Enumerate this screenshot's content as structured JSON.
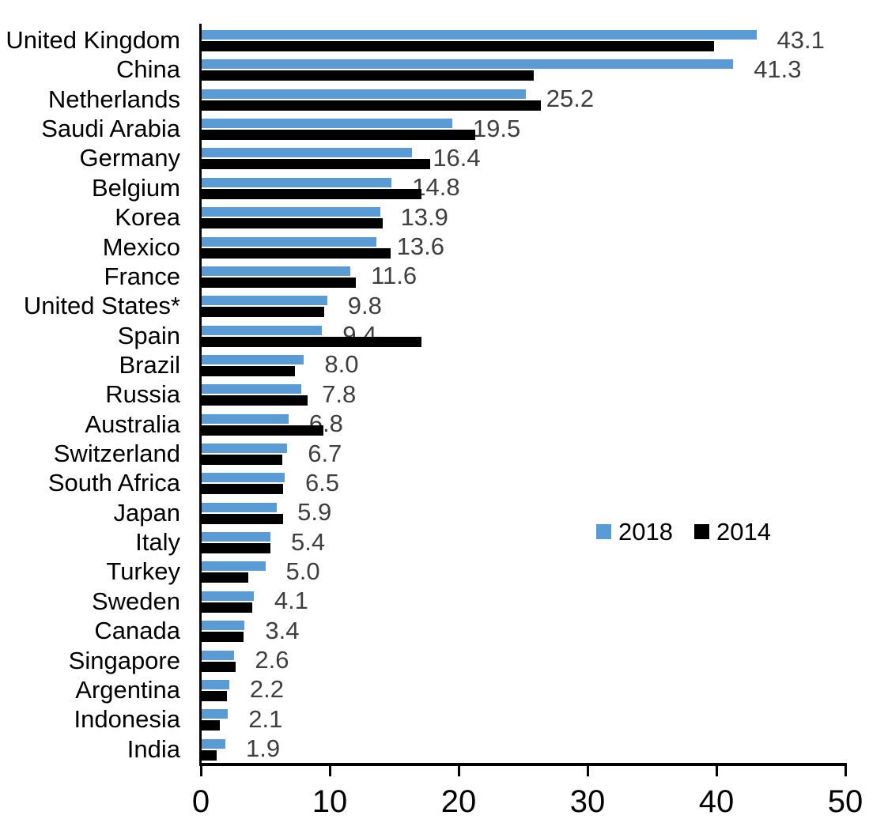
{
  "chart_data": {
    "type": "bar",
    "orientation": "horizontal",
    "title": "",
    "xlabel": "",
    "ylabel": "",
    "xlim": [
      0,
      50
    ],
    "xticks": [
      "0",
      "10",
      "20",
      "30",
      "40",
      "50"
    ],
    "grid": false,
    "legend_position": "middle-right",
    "categories": [
      "United Kingdom",
      "China",
      "Netherlands",
      "Saudi Arabia",
      "Germany",
      "Belgium",
      "Korea",
      "Mexico",
      "France",
      "United States*",
      "Spain",
      "Brazil",
      "Russia",
      "Australia",
      "Switzerland",
      "South Africa",
      "Japan",
      "Italy",
      "Turkey",
      "Sweden",
      "Canada",
      "Singapore",
      "Argentina",
      "Indonesia",
      "India"
    ],
    "series": [
      {
        "name": "2018",
        "color": "#5B9BD5",
        "values": [
          43.1,
          41.3,
          25.2,
          19.5,
          16.4,
          14.8,
          13.9,
          13.6,
          11.6,
          9.8,
          9.4,
          8.0,
          7.8,
          6.8,
          6.7,
          6.5,
          5.9,
          5.4,
          5.0,
          4.1,
          3.4,
          2.6,
          2.2,
          2.1,
          1.9
        ]
      },
      {
        "name": "2014",
        "color": "#000000",
        "values": [
          39.8,
          25.8,
          26.4,
          21.3,
          17.8,
          17.1,
          14.1,
          14.7,
          12.0,
          9.6,
          17.1,
          7.3,
          8.3,
          9.5,
          6.3,
          6.4,
          6.4,
          5.4,
          3.7,
          4.0,
          3.3,
          2.7,
          2.0,
          1.5,
          1.2
        ]
      }
    ],
    "data_labels": [
      "43.1",
      "41.3",
      "25.2",
      "19.5",
      "16.4",
      "14.8",
      "13.9",
      "13.6",
      "11.6",
      "9.8",
      "9.4",
      "8.0",
      "7.8",
      "6.8",
      "6.7",
      "6.5",
      "5.9",
      "5.4",
      "5.0",
      "4.1",
      "3.4",
      "2.6",
      "2.2",
      "2.1",
      "1.9"
    ],
    "data_label_series": "2018"
  },
  "legend": {
    "entries": [
      {
        "label": "2018",
        "color": "#5B9BD5"
      },
      {
        "label": "2014",
        "color": "#000000"
      }
    ]
  },
  "colors": {
    "background": "#ffffff",
    "axis": "#000000",
    "category_text": "#000000",
    "value_text": "#3f3f3f",
    "bar_2018": "#5B9BD5",
    "bar_2014": "#000000"
  }
}
